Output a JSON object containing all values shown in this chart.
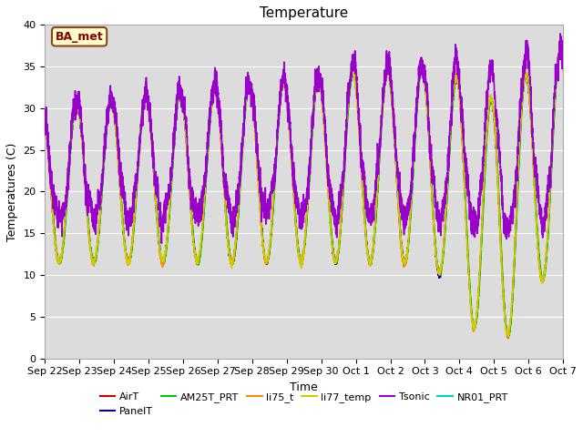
{
  "title": "Temperature",
  "xlabel": "Time",
  "ylabel": "Temperatures (C)",
  "ylim": [
    0,
    40
  ],
  "annotation_text": "BA_met",
  "background_color": "#dcdcdc",
  "series": [
    {
      "label": "AirT",
      "color": "#cc0000",
      "lw": 1.0,
      "zorder": 4
    },
    {
      "label": "PanelT",
      "color": "#000099",
      "lw": 1.0,
      "zorder": 4
    },
    {
      "label": "AM25T_PRT",
      "color": "#00cc00",
      "lw": 1.0,
      "zorder": 4
    },
    {
      "label": "li75_t",
      "color": "#ff8800",
      "lw": 1.0,
      "zorder": 4
    },
    {
      "label": "li77_temp",
      "color": "#cccc00",
      "lw": 1.0,
      "zorder": 4
    },
    {
      "label": "Tsonic",
      "color": "#9900cc",
      "lw": 1.2,
      "zorder": 5
    },
    {
      "label": "NR01_PRT",
      "color": "#00cccc",
      "lw": 1.2,
      "zorder": 3
    }
  ],
  "x_tick_labels": [
    "Sep 22",
    "Sep 23",
    "Sep 24",
    "Sep 25",
    "Sep 26",
    "Sep 27",
    "Sep 28",
    "Sep 29",
    "Sep 30",
    "Oct 1",
    "Oct 2",
    "Oct 3",
    "Oct 4",
    "Oct 5",
    "Oct 6",
    "Oct 7"
  ],
  "n_days": 15,
  "pts_per_day": 288,
  "title_fontsize": 11,
  "axis_fontsize": 9,
  "tick_fontsize": 8,
  "legend_fontsize": 8
}
